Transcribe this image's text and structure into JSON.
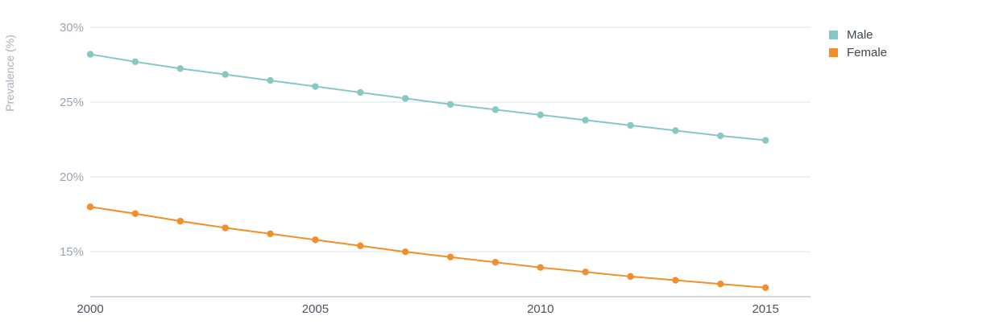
{
  "chart_data": {
    "type": "line",
    "title": "",
    "xlabel": "",
    "ylabel": "Prevalence (%)",
    "x": [
      2000,
      2001,
      2002,
      2003,
      2004,
      2005,
      2006,
      2007,
      2008,
      2009,
      2010,
      2011,
      2012,
      2013,
      2014,
      2015
    ],
    "x_ticks": [
      {
        "value": 2000,
        "label": "2000"
      },
      {
        "value": 2005,
        "label": "2005"
      },
      {
        "value": 2010,
        "label": "2010"
      },
      {
        "value": 2015,
        "label": "2015"
      }
    ],
    "xlim": [
      2000,
      2016
    ],
    "y_ticks": [
      {
        "value": 15,
        "label": "15%"
      },
      {
        "value": 20,
        "label": "20%"
      },
      {
        "value": 25,
        "label": "25%"
      },
      {
        "value": 30,
        "label": "30%"
      }
    ],
    "ylim": [
      12.0,
      30.0
    ],
    "grid": true,
    "legend_position": "top-right",
    "series": [
      {
        "name": "Male",
        "color": "#87c7c5",
        "values": [
          28.2,
          27.7,
          27.25,
          26.85,
          26.45,
          26.05,
          25.65,
          25.25,
          24.85,
          24.5,
          24.15,
          23.8,
          23.45,
          23.1,
          22.75,
          22.45
        ]
      },
      {
        "name": "Female",
        "color": "#f28e2b",
        "values": [
          18.0,
          17.55,
          17.05,
          16.6,
          16.2,
          15.8,
          15.4,
          15.0,
          14.65,
          14.3,
          13.95,
          13.65,
          13.35,
          13.1,
          12.85,
          12.6
        ]
      }
    ]
  }
}
